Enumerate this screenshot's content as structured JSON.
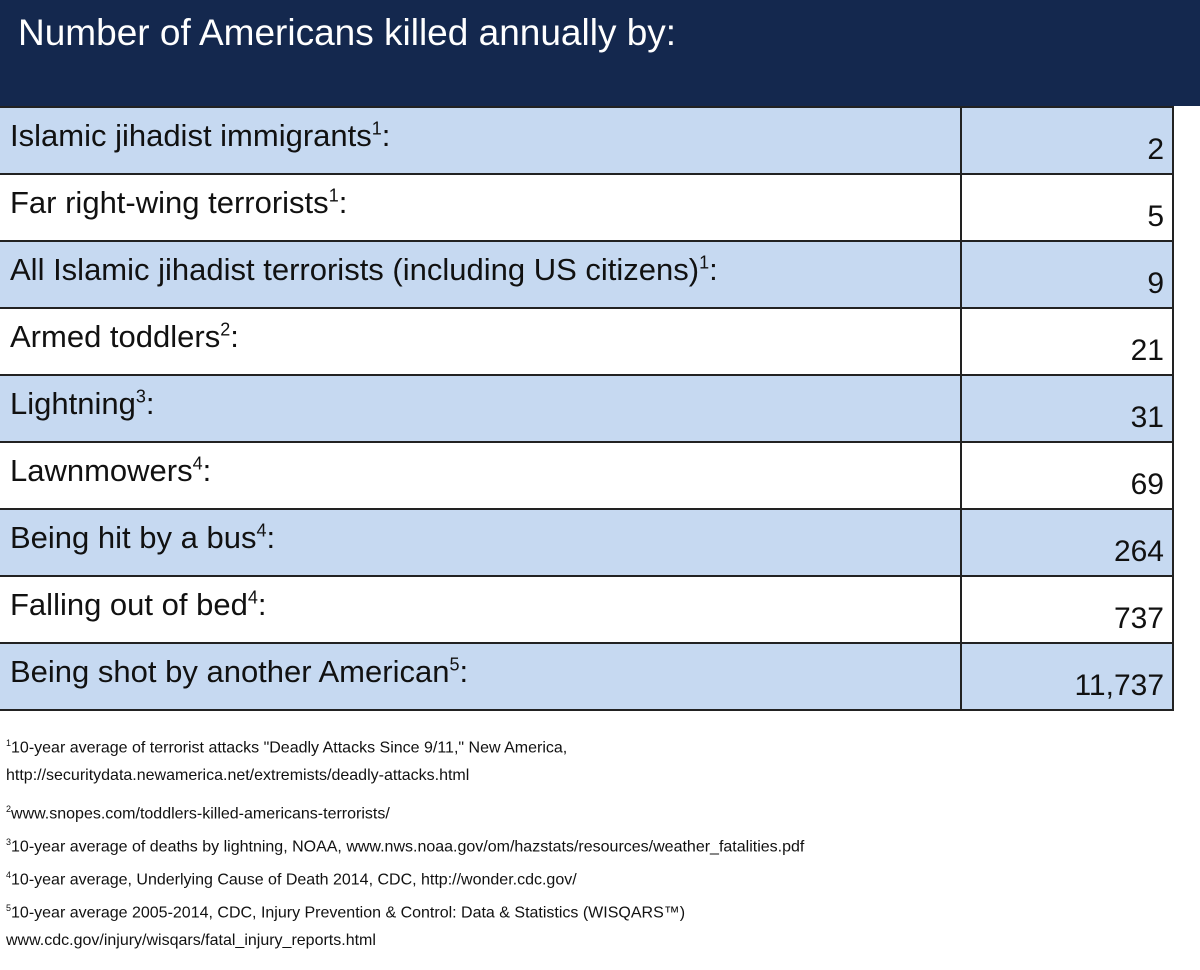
{
  "header": {
    "title": "Number of Americans killed annually by:"
  },
  "table": {
    "label_suffix": ":",
    "rows": [
      {
        "label": "Islamic jihadist immigrants",
        "note": "1",
        "value": "2"
      },
      {
        "label": "Far right-wing terrorists",
        "note": "1",
        "value": "5"
      },
      {
        "label": "All Islamic jihadist terrorists (including US citizens)",
        "note": "1",
        "value": "9"
      },
      {
        "label": "Armed toddlers",
        "note": "2",
        "value": "21"
      },
      {
        "label": "Lightning",
        "note": "3",
        "value": "31"
      },
      {
        "label": "Lawnmowers",
        "note": "4",
        "value": "69"
      },
      {
        "label": "Being hit by a bus",
        "note": "4",
        "value": "264"
      },
      {
        "label": "Falling out of bed",
        "note": "4",
        "value": "737"
      },
      {
        "label": "Being shot by another American",
        "note": "5",
        "value": "11,737"
      }
    ]
  },
  "footnotes": [
    {
      "marker": "1",
      "lines": [
        "10-year average of terrorist attacks \"Deadly Attacks Since 9/11,\" New America,",
        "http://securitydata.newamerica.net/extremists/deadly-attacks.html"
      ]
    },
    {
      "marker": "2",
      "lines": [
        "www.snopes.com/toddlers-killed-americans-terrorists/"
      ]
    },
    {
      "marker": "3",
      "lines": [
        "10-year average of deaths by lightning, NOAA, www.nws.noaa.gov/om/hazstats/resources/weather_fatalities.pdf"
      ]
    },
    {
      "marker": "4",
      "lines": [
        "10-year average, Underlying Cause of Death 2014, CDC, http://wonder.cdc.gov/"
      ]
    },
    {
      "marker": "5",
      "lines": [
        "10-year average 2005-2014, CDC, Injury Prevention & Control: Data & Statistics (WISQARS™)",
        "www.cdc.gov/injury/wisqars/fatal_injury_reports.html"
      ]
    }
  ]
}
